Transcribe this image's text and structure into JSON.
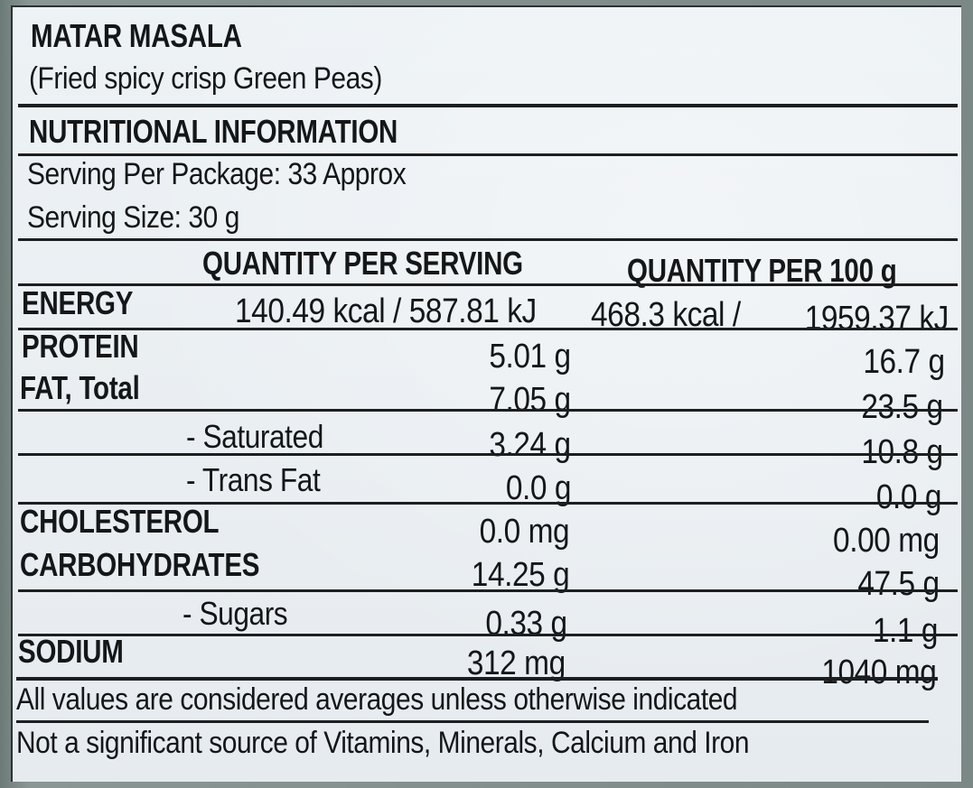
{
  "product": {
    "name": "MATAR MASALA",
    "description": "(Fried spicy crisp Green Peas)"
  },
  "panel": {
    "heading": "NUTRITIONAL INFORMATION",
    "serving_per_package": "Serving Per Package: 33 Approx",
    "serving_size": "Serving Size: 30 g"
  },
  "table": {
    "col_per_serving": "QUANTITY PER SERVING",
    "col_per_100g": "QUANTITY PER 100 g",
    "rows": [
      {
        "label": "ENERGY",
        "per_serving": "140.49 kcal / 587.81 kJ",
        "per_100g_kcal": "468.3 kcal /",
        "per_100g": "1959.37 kJ"
      },
      {
        "label": "PROTEIN",
        "per_serving": "5.01 g",
        "per_100g": "16.7 g"
      },
      {
        "label": "FAT, Total",
        "per_serving": "7.05 g",
        "per_100g": "23.5 g"
      },
      {
        "label": "- Saturated",
        "per_serving": "3.24 g",
        "per_100g": "10.8 g"
      },
      {
        "label": "- Trans Fat",
        "per_serving": "0.0 g",
        "per_100g": "0.0 g"
      },
      {
        "label": "CHOLESTEROL",
        "per_serving": "0.0 mg",
        "per_100g": "0.00 mg"
      },
      {
        "label": "CARBOHYDRATES",
        "per_serving": "14.25 g",
        "per_100g": "47.5 g"
      },
      {
        "label": "- Sugars",
        "per_serving": "0.33 g",
        "per_100g": "1.1 g"
      },
      {
        "label": "SODIUM",
        "per_serving": "312 mg",
        "per_100g": "1040 mg"
      }
    ]
  },
  "footer": {
    "note_1": "All values are considered averages unless otherwise indicated",
    "note_2": "Not a significant source of Vitamins, Minerals, Calcium and Iron"
  }
}
